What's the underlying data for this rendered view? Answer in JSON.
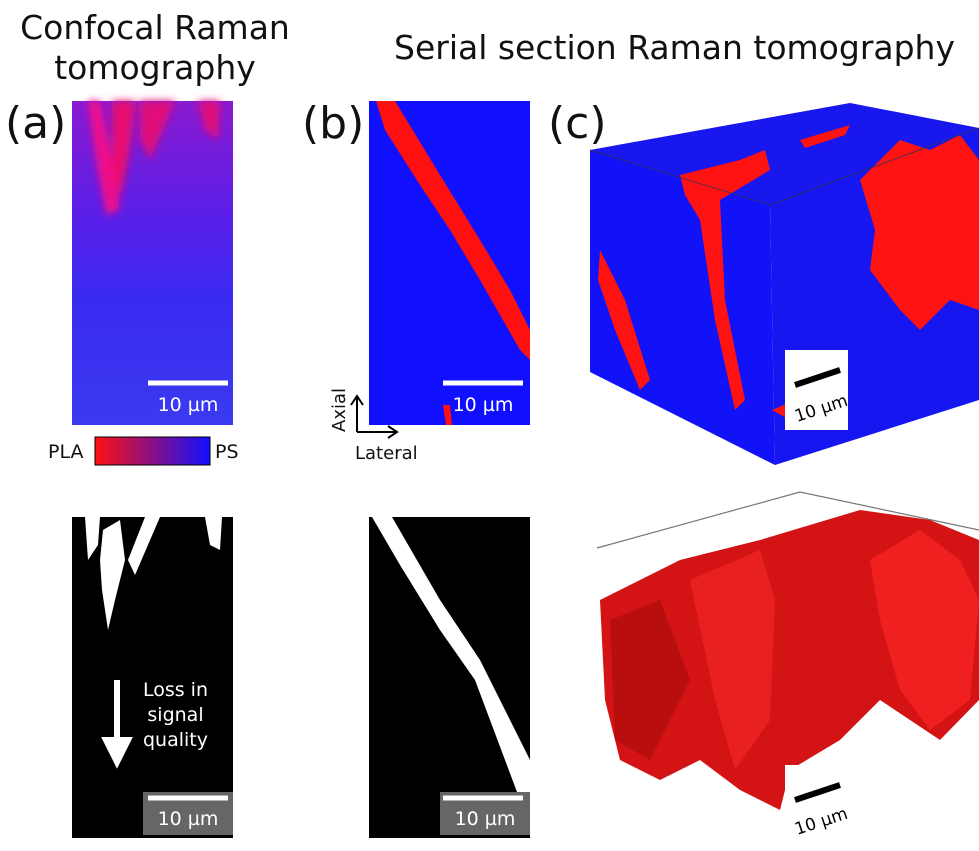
{
  "headings": {
    "confocal": "Confocal Raman tomography",
    "serial": "Serial section Raman tomography"
  },
  "panels": [
    {
      "label": "(a)",
      "scale_bar": "10 µm",
      "mask_scale_bar": "10 µm"
    },
    {
      "label": "(b)",
      "scale_bar": "10 µm",
      "mask_scale_bar": "10 µm"
    },
    {
      "label": "(c)",
      "scale_bar": "10 µm",
      "mask_scale_bar": "10 µm"
    }
  ],
  "colorbar": {
    "low": "PLA",
    "high": "PS"
  },
  "axes": {
    "vertical": "Axial",
    "horizontal": "Lateral"
  },
  "annotation": "Loss in signal quality"
}
